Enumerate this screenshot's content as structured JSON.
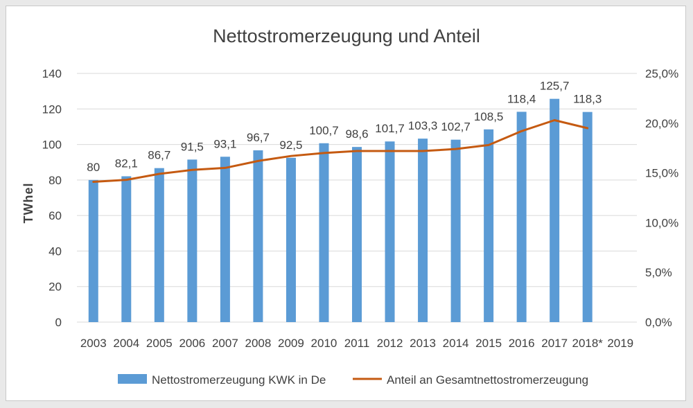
{
  "chart_data": {
    "type": "bar",
    "title": "Nettostromerzeugung und Anteil",
    "ylabel": "TWhel",
    "xlabel": "",
    "categories": [
      "2003",
      "2004",
      "2005",
      "2006",
      "2007",
      "2008",
      "2009",
      "2010",
      "2011",
      "2012",
      "2013",
      "2014",
      "2015",
      "2016",
      "2017",
      "2018*",
      "2019"
    ],
    "series": [
      {
        "name": "Nettostromerzeugung KWK in De",
        "type": "bar",
        "axis": "left",
        "color": "#5b9bd5",
        "values": [
          80,
          82.1,
          86.7,
          91.5,
          93.1,
          96.7,
          92.5,
          100.7,
          98.6,
          101.7,
          103.3,
          102.7,
          108.5,
          118.4,
          125.7,
          118.3,
          null
        ],
        "labels": [
          "80",
          "82,1",
          "86,7",
          "91,5",
          "93,1",
          "96,7",
          "92,5",
          "100,7",
          "98,6",
          "101,7",
          "103,3",
          "102,7",
          "108,5",
          "118,4",
          "125,7",
          "118,3",
          ""
        ]
      },
      {
        "name": "Anteil an Gesamtnettostromerzeugung",
        "type": "line",
        "axis": "right",
        "color": "#c55a11",
        "values": [
          14.1,
          14.3,
          14.9,
          15.3,
          15.5,
          16.2,
          16.7,
          17.0,
          17.2,
          17.2,
          17.2,
          17.4,
          17.8,
          19.2,
          20.3,
          19.5,
          null
        ]
      }
    ],
    "ylim": [
      0,
      140
    ],
    "yticks": [
      "0",
      "20",
      "40",
      "60",
      "80",
      "100",
      "120",
      "140"
    ],
    "y2lim": [
      0,
      25
    ],
    "y2ticks": [
      "0,0%",
      "5,0%",
      "10,0%",
      "15,0%",
      "20,0%",
      "25,0%"
    ],
    "grid": true,
    "legend": "bottom"
  }
}
